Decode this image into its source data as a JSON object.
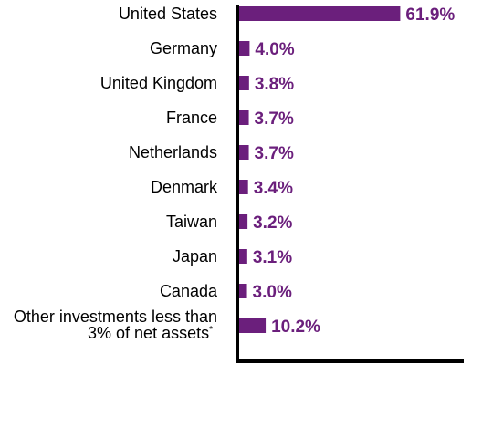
{
  "chart_data": {
    "type": "bar",
    "orientation": "horizontal",
    "categories": [
      "United States",
      "Germany",
      "United Kingdom",
      "France",
      "Netherlands",
      "Denmark",
      "Taiwan",
      "Japan",
      "Canada",
      "Other investments less than 3% of net assets*"
    ],
    "category_lines": [
      [
        "United States"
      ],
      [
        "Germany"
      ],
      [
        "United Kingdom"
      ],
      [
        "France"
      ],
      [
        "Netherlands"
      ],
      [
        "Denmark"
      ],
      [
        "Taiwan"
      ],
      [
        "Japan"
      ],
      [
        "Canada"
      ],
      [
        "Other investments less than",
        "3% of net assets",
        "*"
      ]
    ],
    "values": [
      61.9,
      4.0,
      3.8,
      3.7,
      3.7,
      3.4,
      3.2,
      3.1,
      3.0,
      10.2
    ],
    "value_labels": [
      "61.9%",
      "4.0%",
      "3.8%",
      "3.7%",
      "3.7%",
      "3.4%",
      "3.2%",
      "3.1%",
      "3.0%",
      "10.2%"
    ],
    "xlim": [
      0,
      75
    ],
    "title": "",
    "xlabel": "",
    "ylabel": "",
    "grid": false,
    "bar_color": "#6b1f7c",
    "label_color": "#6b1f7c"
  }
}
